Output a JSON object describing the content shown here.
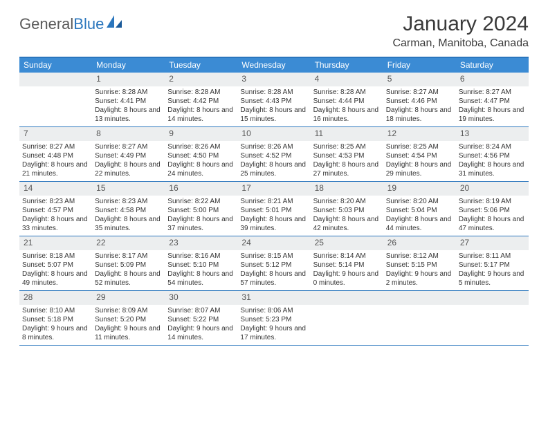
{
  "logo": {
    "part1": "General",
    "part2": "Blue"
  },
  "title": "January 2024",
  "location": "Carman, Manitoba, Canada",
  "days_of_week": [
    "Sunday",
    "Monday",
    "Tuesday",
    "Wednesday",
    "Thursday",
    "Friday",
    "Saturday"
  ],
  "colors": {
    "header_bar": "#3b8bd4",
    "accent": "#2a76bd",
    "daynum_bg": "#eceeef"
  },
  "weeks": [
    [
      {
        "n": "",
        "sunrise": "",
        "sunset": "",
        "daylight": ""
      },
      {
        "n": "1",
        "sunrise": "Sunrise: 8:28 AM",
        "sunset": "Sunset: 4:41 PM",
        "daylight": "Daylight: 8 hours and 13 minutes."
      },
      {
        "n": "2",
        "sunrise": "Sunrise: 8:28 AM",
        "sunset": "Sunset: 4:42 PM",
        "daylight": "Daylight: 8 hours and 14 minutes."
      },
      {
        "n": "3",
        "sunrise": "Sunrise: 8:28 AM",
        "sunset": "Sunset: 4:43 PM",
        "daylight": "Daylight: 8 hours and 15 minutes."
      },
      {
        "n": "4",
        "sunrise": "Sunrise: 8:28 AM",
        "sunset": "Sunset: 4:44 PM",
        "daylight": "Daylight: 8 hours and 16 minutes."
      },
      {
        "n": "5",
        "sunrise": "Sunrise: 8:27 AM",
        "sunset": "Sunset: 4:46 PM",
        "daylight": "Daylight: 8 hours and 18 minutes."
      },
      {
        "n": "6",
        "sunrise": "Sunrise: 8:27 AM",
        "sunset": "Sunset: 4:47 PM",
        "daylight": "Daylight: 8 hours and 19 minutes."
      }
    ],
    [
      {
        "n": "7",
        "sunrise": "Sunrise: 8:27 AM",
        "sunset": "Sunset: 4:48 PM",
        "daylight": "Daylight: 8 hours and 21 minutes."
      },
      {
        "n": "8",
        "sunrise": "Sunrise: 8:27 AM",
        "sunset": "Sunset: 4:49 PM",
        "daylight": "Daylight: 8 hours and 22 minutes."
      },
      {
        "n": "9",
        "sunrise": "Sunrise: 8:26 AM",
        "sunset": "Sunset: 4:50 PM",
        "daylight": "Daylight: 8 hours and 24 minutes."
      },
      {
        "n": "10",
        "sunrise": "Sunrise: 8:26 AM",
        "sunset": "Sunset: 4:52 PM",
        "daylight": "Daylight: 8 hours and 25 minutes."
      },
      {
        "n": "11",
        "sunrise": "Sunrise: 8:25 AM",
        "sunset": "Sunset: 4:53 PM",
        "daylight": "Daylight: 8 hours and 27 minutes."
      },
      {
        "n": "12",
        "sunrise": "Sunrise: 8:25 AM",
        "sunset": "Sunset: 4:54 PM",
        "daylight": "Daylight: 8 hours and 29 minutes."
      },
      {
        "n": "13",
        "sunrise": "Sunrise: 8:24 AM",
        "sunset": "Sunset: 4:56 PM",
        "daylight": "Daylight: 8 hours and 31 minutes."
      }
    ],
    [
      {
        "n": "14",
        "sunrise": "Sunrise: 8:23 AM",
        "sunset": "Sunset: 4:57 PM",
        "daylight": "Daylight: 8 hours and 33 minutes."
      },
      {
        "n": "15",
        "sunrise": "Sunrise: 8:23 AM",
        "sunset": "Sunset: 4:58 PM",
        "daylight": "Daylight: 8 hours and 35 minutes."
      },
      {
        "n": "16",
        "sunrise": "Sunrise: 8:22 AM",
        "sunset": "Sunset: 5:00 PM",
        "daylight": "Daylight: 8 hours and 37 minutes."
      },
      {
        "n": "17",
        "sunrise": "Sunrise: 8:21 AM",
        "sunset": "Sunset: 5:01 PM",
        "daylight": "Daylight: 8 hours and 39 minutes."
      },
      {
        "n": "18",
        "sunrise": "Sunrise: 8:20 AM",
        "sunset": "Sunset: 5:03 PM",
        "daylight": "Daylight: 8 hours and 42 minutes."
      },
      {
        "n": "19",
        "sunrise": "Sunrise: 8:20 AM",
        "sunset": "Sunset: 5:04 PM",
        "daylight": "Daylight: 8 hours and 44 minutes."
      },
      {
        "n": "20",
        "sunrise": "Sunrise: 8:19 AM",
        "sunset": "Sunset: 5:06 PM",
        "daylight": "Daylight: 8 hours and 47 minutes."
      }
    ],
    [
      {
        "n": "21",
        "sunrise": "Sunrise: 8:18 AM",
        "sunset": "Sunset: 5:07 PM",
        "daylight": "Daylight: 8 hours and 49 minutes."
      },
      {
        "n": "22",
        "sunrise": "Sunrise: 8:17 AM",
        "sunset": "Sunset: 5:09 PM",
        "daylight": "Daylight: 8 hours and 52 minutes."
      },
      {
        "n": "23",
        "sunrise": "Sunrise: 8:16 AM",
        "sunset": "Sunset: 5:10 PM",
        "daylight": "Daylight: 8 hours and 54 minutes."
      },
      {
        "n": "24",
        "sunrise": "Sunrise: 8:15 AM",
        "sunset": "Sunset: 5:12 PM",
        "daylight": "Daylight: 8 hours and 57 minutes."
      },
      {
        "n": "25",
        "sunrise": "Sunrise: 8:14 AM",
        "sunset": "Sunset: 5:14 PM",
        "daylight": "Daylight: 9 hours and 0 minutes."
      },
      {
        "n": "26",
        "sunrise": "Sunrise: 8:12 AM",
        "sunset": "Sunset: 5:15 PM",
        "daylight": "Daylight: 9 hours and 2 minutes."
      },
      {
        "n": "27",
        "sunrise": "Sunrise: 8:11 AM",
        "sunset": "Sunset: 5:17 PM",
        "daylight": "Daylight: 9 hours and 5 minutes."
      }
    ],
    [
      {
        "n": "28",
        "sunrise": "Sunrise: 8:10 AM",
        "sunset": "Sunset: 5:18 PM",
        "daylight": "Daylight: 9 hours and 8 minutes."
      },
      {
        "n": "29",
        "sunrise": "Sunrise: 8:09 AM",
        "sunset": "Sunset: 5:20 PM",
        "daylight": "Daylight: 9 hours and 11 minutes."
      },
      {
        "n": "30",
        "sunrise": "Sunrise: 8:07 AM",
        "sunset": "Sunset: 5:22 PM",
        "daylight": "Daylight: 9 hours and 14 minutes."
      },
      {
        "n": "31",
        "sunrise": "Sunrise: 8:06 AM",
        "sunset": "Sunset: 5:23 PM",
        "daylight": "Daylight: 9 hours and 17 minutes."
      },
      {
        "n": "",
        "sunrise": "",
        "sunset": "",
        "daylight": ""
      },
      {
        "n": "",
        "sunrise": "",
        "sunset": "",
        "daylight": ""
      },
      {
        "n": "",
        "sunrise": "",
        "sunset": "",
        "daylight": ""
      }
    ]
  ]
}
